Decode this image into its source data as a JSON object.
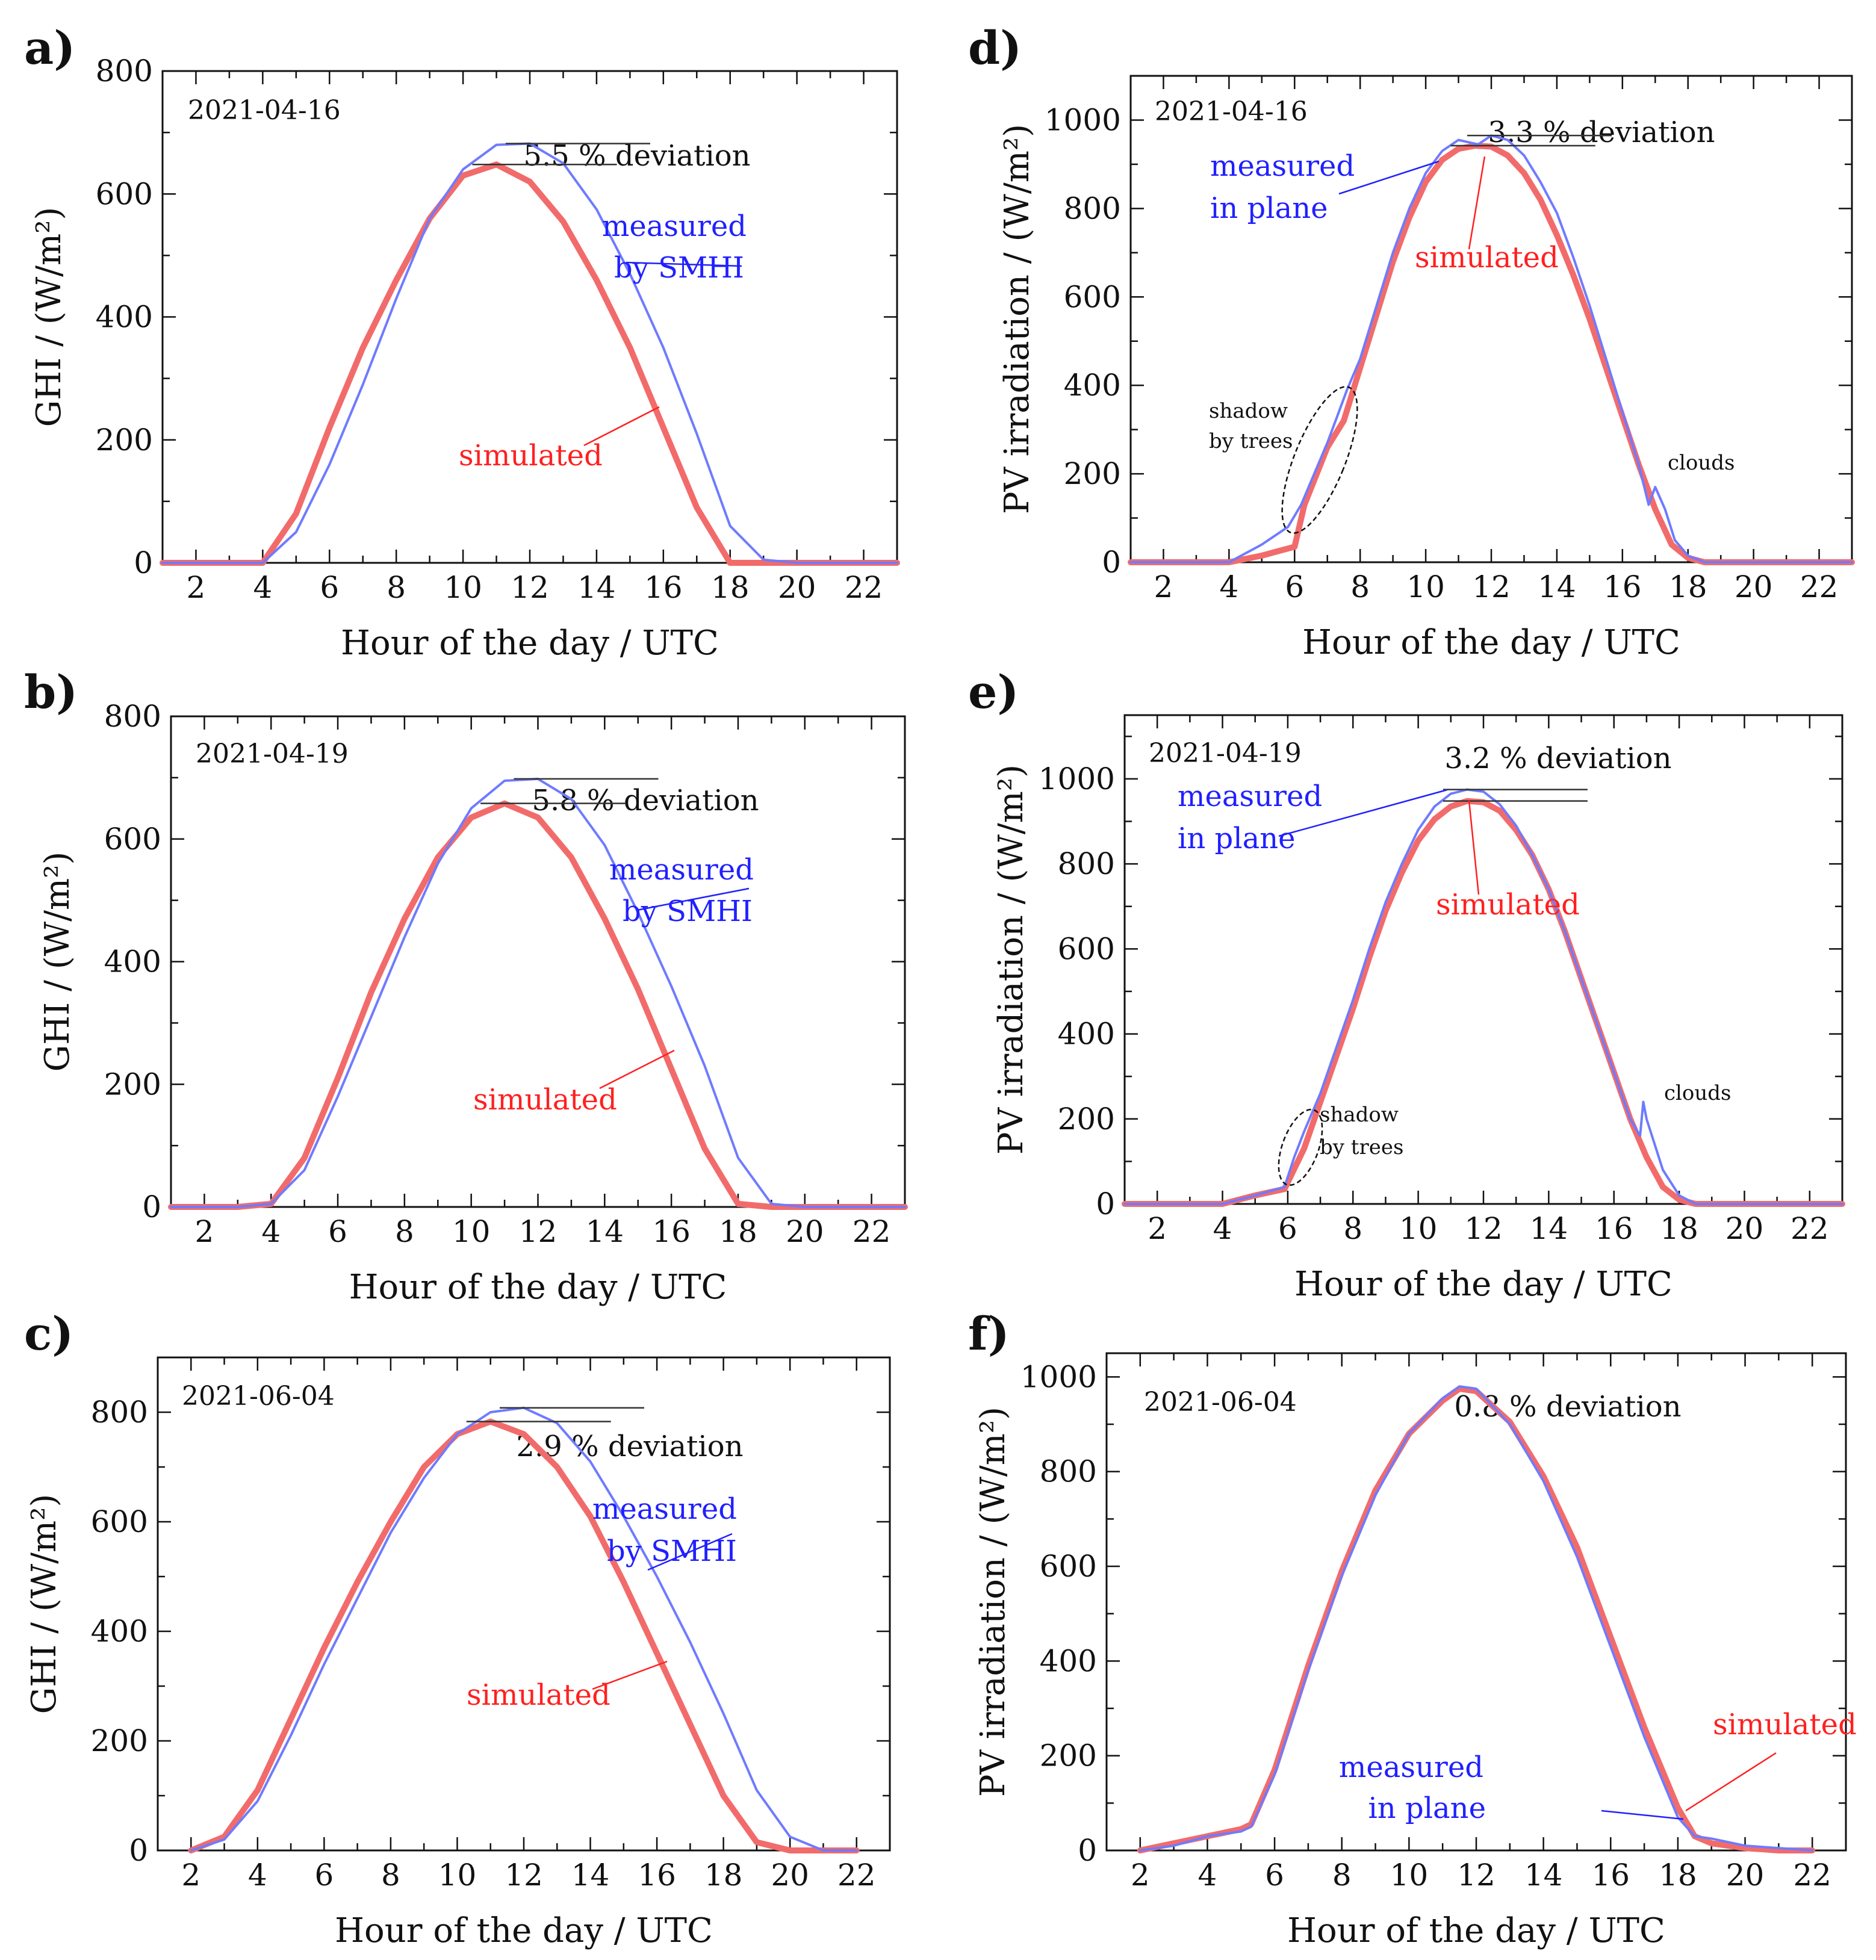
{
  "colors": {
    "measured": "#6f7bff",
    "simulated": "#f26b6b",
    "blue_text": "#2020ff",
    "red_text": "#ff2020"
  },
  "chart_data": [
    {
      "id": "a",
      "panel_label": "a)",
      "type": "line",
      "title": "",
      "date": "2021-04-16",
      "deviation": "5.5 % deviation",
      "xlabel": "Hour of the day / UTC",
      "ylabel": "GHI / (W/m²)",
      "xlim": [
        1,
        23
      ],
      "ylim": [
        0,
        800
      ],
      "xticks": [
        2,
        4,
        6,
        8,
        10,
        12,
        14,
        16,
        18,
        20,
        22
      ],
      "yticks": [
        0,
        200,
        400,
        600,
        800
      ],
      "legend": {
        "measured_line1": "measured",
        "measured_line2": "by SMHI",
        "simulated": "simulated"
      },
      "series": [
        {
          "name": "measured",
          "x": [
            1,
            2,
            3,
            4,
            5,
            6,
            7,
            8,
            9,
            10,
            11,
            12,
            13,
            14,
            15,
            16,
            17,
            18,
            19,
            20,
            21,
            22,
            23
          ],
          "values": [
            0,
            0,
            0,
            0,
            50,
            160,
            290,
            430,
            560,
            640,
            680,
            682,
            650,
            575,
            470,
            350,
            210,
            60,
            5,
            0,
            0,
            0,
            0
          ]
        },
        {
          "name": "simulated",
          "x": [
            1,
            2,
            3,
            4,
            5,
            6,
            7,
            8,
            9,
            10,
            11,
            12,
            13,
            14,
            15,
            16,
            17,
            18,
            19,
            20,
            21,
            22,
            23
          ],
          "values": [
            0,
            0,
            0,
            0,
            80,
            220,
            350,
            460,
            560,
            630,
            648,
            620,
            555,
            460,
            350,
            220,
            90,
            0,
            0,
            0,
            0,
            0,
            0
          ]
        }
      ]
    },
    {
      "id": "b",
      "panel_label": "b)",
      "type": "line",
      "title": "",
      "date": "2021-04-19",
      "deviation": "5.8 % deviation",
      "xlabel": "Hour of the day / UTC",
      "ylabel": "GHI / (W/m²)",
      "xlim": [
        1,
        23
      ],
      "ylim": [
        0,
        800
      ],
      "xticks": [
        2,
        4,
        6,
        8,
        10,
        12,
        14,
        16,
        18,
        20,
        22
      ],
      "yticks": [
        0,
        200,
        400,
        600,
        800
      ],
      "legend": {
        "measured_line1": "measured",
        "measured_line2": "by SMHI",
        "simulated": "simulated"
      },
      "series": [
        {
          "name": "measured",
          "x": [
            1,
            2,
            3,
            4,
            5,
            6,
            7,
            8,
            9,
            10,
            11,
            12,
            13,
            14,
            15,
            16,
            17,
            18,
            19,
            20,
            21,
            22,
            23
          ],
          "values": [
            0,
            0,
            0,
            5,
            60,
            180,
            310,
            440,
            560,
            650,
            695,
            698,
            665,
            590,
            480,
            360,
            230,
            80,
            5,
            0,
            0,
            0,
            0
          ]
        },
        {
          "name": "simulated",
          "x": [
            1,
            2,
            3,
            4,
            5,
            6,
            7,
            8,
            9,
            10,
            11,
            12,
            13,
            14,
            15,
            16,
            17,
            18,
            19,
            20,
            21,
            22,
            23
          ],
          "values": [
            0,
            0,
            0,
            5,
            80,
            210,
            350,
            470,
            570,
            635,
            658,
            635,
            570,
            470,
            355,
            225,
            95,
            5,
            0,
            0,
            0,
            0,
            0
          ]
        }
      ]
    },
    {
      "id": "c",
      "panel_label": "c)",
      "type": "line",
      "title": "",
      "date": "2021-06-04",
      "deviation": "2.9 % deviation",
      "xlabel": "Hour of the day / UTC",
      "ylabel": "GHI / (W/m²)",
      "xlim": [
        1,
        23
      ],
      "ylim": [
        0,
        900
      ],
      "xticks": [
        2,
        4,
        6,
        8,
        10,
        12,
        14,
        16,
        18,
        20,
        22
      ],
      "yticks": [
        0,
        200,
        400,
        600,
        800
      ],
      "legend": {
        "measured_line1": "measured",
        "measured_line2": "by SMHI",
        "simulated": "simulated"
      },
      "series": [
        {
          "name": "measured",
          "x": [
            2,
            3,
            4,
            5,
            6,
            7,
            8,
            9,
            10,
            11,
            12,
            13,
            14,
            15,
            16,
            17,
            18,
            19,
            20,
            21,
            22
          ],
          "values": [
            0,
            20,
            90,
            210,
            340,
            460,
            580,
            680,
            760,
            800,
            808,
            780,
            710,
            610,
            500,
            380,
            250,
            110,
            25,
            0,
            0
          ]
        },
        {
          "name": "simulated",
          "x": [
            2,
            3,
            4,
            5,
            6,
            7,
            8,
            9,
            10,
            11,
            12,
            13,
            14,
            15,
            16,
            17,
            18,
            19,
            20,
            21,
            22
          ],
          "values": [
            0,
            25,
            110,
            240,
            370,
            490,
            600,
            700,
            760,
            783,
            760,
            700,
            610,
            490,
            360,
            230,
            100,
            15,
            0,
            0,
            0
          ]
        }
      ]
    },
    {
      "id": "d",
      "panel_label": "d)",
      "type": "line",
      "title": "",
      "date": "2021-04-16",
      "deviation": "3.3 % deviation",
      "xlabel": "Hour of the day / UTC",
      "ylabel": "PV irradiation / (W/m²)",
      "xlim": [
        1,
        23
      ],
      "ylim": [
        0,
        1100
      ],
      "xticks": [
        2,
        4,
        6,
        8,
        10,
        12,
        14,
        16,
        18,
        20,
        22
      ],
      "yticks": [
        0,
        200,
        400,
        600,
        800,
        1000
      ],
      "legend": {
        "measured_line1": "measured",
        "measured_line2": "in plane",
        "simulated": "simulated"
      },
      "annotations": {
        "shadow_line1": "shadow",
        "shadow_line2": "by trees",
        "clouds": "clouds"
      },
      "series": [
        {
          "name": "measured",
          "x": [
            1,
            2,
            3,
            4,
            5,
            5.8,
            6.2,
            6.6,
            7,
            7.3,
            7.6,
            8,
            8.5,
            9,
            9.5,
            10,
            10.5,
            11,
            11.3,
            11.6,
            12,
            12.5,
            13,
            13.5,
            14,
            14.5,
            15,
            15.5,
            16,
            16.5,
            16.8,
            16.9,
            17,
            17.3,
            17.6,
            18,
            18.5,
            19,
            20,
            21,
            22,
            23
          ],
          "values": [
            0,
            0,
            0,
            0,
            40,
            80,
            130,
            200,
            270,
            330,
            390,
            460,
            580,
            700,
            800,
            880,
            930,
            955,
            950,
            945,
            965,
            955,
            920,
            860,
            790,
            690,
            580,
            460,
            340,
            220,
            130,
            150,
            170,
            120,
            50,
            15,
            0,
            0,
            0,
            0,
            0,
            0
          ]
        },
        {
          "name": "simulated",
          "x": [
            1,
            2,
            3,
            4,
            5,
            5.5,
            6,
            6.3,
            7,
            7.5,
            8,
            8.5,
            9,
            9.5,
            10,
            10.5,
            11,
            11.5,
            12,
            12.5,
            13,
            13.5,
            14,
            14.5,
            15,
            15.5,
            16,
            16.5,
            17,
            17.5,
            18,
            18.5,
            19,
            20,
            21,
            22,
            23
          ],
          "values": [
            0,
            0,
            0,
            0,
            15,
            25,
            35,
            130,
            260,
            320,
            440,
            560,
            680,
            780,
            860,
            910,
            935,
            942,
            940,
            920,
            880,
            820,
            740,
            650,
            550,
            440,
            330,
            220,
            120,
            40,
            10,
            0,
            0,
            0,
            0,
            0,
            0
          ]
        }
      ]
    },
    {
      "id": "e",
      "panel_label": "e)",
      "type": "line",
      "title": "",
      "date": "2021-04-19",
      "deviation": "3.2 % deviation",
      "xlabel": "Hour of the day / UTC",
      "ylabel": "PV irradiation / (W/m²)",
      "xlim": [
        1,
        23
      ],
      "ylim": [
        0,
        1150
      ],
      "xticks": [
        2,
        4,
        6,
        8,
        10,
        12,
        14,
        16,
        18,
        20,
        22
      ],
      "yticks": [
        0,
        200,
        400,
        600,
        800,
        1000
      ],
      "legend": {
        "measured_line1": "measured",
        "measured_line2": "in plane",
        "simulated": "simulated"
      },
      "annotations": {
        "shadow_line1": "shadow",
        "shadow_line2": "by trees",
        "clouds": "clouds"
      },
      "series": [
        {
          "name": "measured",
          "x": [
            1,
            2,
            3,
            4,
            5,
            5.9,
            6.2,
            6.5,
            7,
            7.5,
            8,
            8.5,
            9,
            9.5,
            10,
            10.5,
            11,
            11.5,
            12,
            12.5,
            13,
            13.5,
            14,
            14.5,
            15,
            15.5,
            16,
            16.5,
            16.8,
            16.9,
            17,
            17.5,
            18,
            18.5,
            19,
            20,
            21,
            22,
            23
          ],
          "values": [
            0,
            0,
            0,
            0,
            20,
            40,
            110,
            170,
            260,
            370,
            480,
            600,
            710,
            800,
            880,
            935,
            965,
            975,
            970,
            940,
            890,
            820,
            740,
            640,
            530,
            420,
            310,
            200,
            160,
            240,
            200,
            80,
            20,
            0,
            0,
            0,
            0,
            0,
            0
          ]
        },
        {
          "name": "simulated",
          "x": [
            1,
            2,
            3,
            4,
            5,
            5.9,
            6.5,
            7,
            7.5,
            8,
            8.5,
            9,
            9.5,
            10,
            10.5,
            11,
            11.5,
            12,
            12.5,
            13,
            13.5,
            14,
            14.5,
            15,
            15.5,
            16,
            16.5,
            17,
            17.5,
            18,
            18.5,
            19,
            20,
            21,
            22,
            23
          ],
          "values": [
            0,
            0,
            0,
            0,
            20,
            35,
            130,
            240,
            350,
            460,
            580,
            690,
            780,
            855,
            905,
            935,
            948,
            945,
            925,
            880,
            820,
            740,
            640,
            530,
            420,
            310,
            200,
            110,
            40,
            10,
            0,
            0,
            0,
            0,
            0,
            0
          ]
        }
      ]
    },
    {
      "id": "f",
      "panel_label": "f)",
      "type": "line",
      "title": "",
      "date": "2021-06-04",
      "deviation": "0.8 % deviation",
      "xlabel": "Hour of the day / UTC",
      "ylabel": "PV irradiation / (W/m²)",
      "xlim": [
        1,
        23
      ],
      "ylim": [
        0,
        1050
      ],
      "xticks": [
        2,
        4,
        6,
        8,
        10,
        12,
        14,
        16,
        18,
        20,
        22
      ],
      "yticks": [
        0,
        200,
        400,
        600,
        800,
        1000
      ],
      "legend": {
        "measured_line1": "measured",
        "measured_line2": "in plane",
        "simulated": "simulated"
      },
      "series": [
        {
          "name": "measured",
          "x": [
            2,
            3,
            4,
            5,
            5.3,
            6,
            7,
            8,
            9,
            10,
            11,
            11.5,
            12,
            13,
            14,
            15,
            16,
            17,
            18,
            18.5,
            19,
            20,
            21,
            22
          ],
          "values": [
            0,
            10,
            30,
            40,
            50,
            160,
            380,
            580,
            750,
            880,
            955,
            980,
            975,
            900,
            780,
            620,
            430,
            240,
            70,
            30,
            25,
            10,
            5,
            0
          ]
        },
        {
          "name": "simulated",
          "x": [
            2,
            3,
            4,
            5,
            5.3,
            6,
            7,
            8,
            9,
            10,
            11,
            11.5,
            12,
            13,
            14,
            15,
            16,
            17,
            18,
            18.5,
            19,
            20,
            21,
            22
          ],
          "values": [
            0,
            15,
            30,
            45,
            55,
            170,
            390,
            590,
            760,
            880,
            950,
            975,
            970,
            905,
            790,
            640,
            450,
            260,
            90,
            30,
            15,
            5,
            0,
            0
          ]
        }
      ]
    }
  ]
}
